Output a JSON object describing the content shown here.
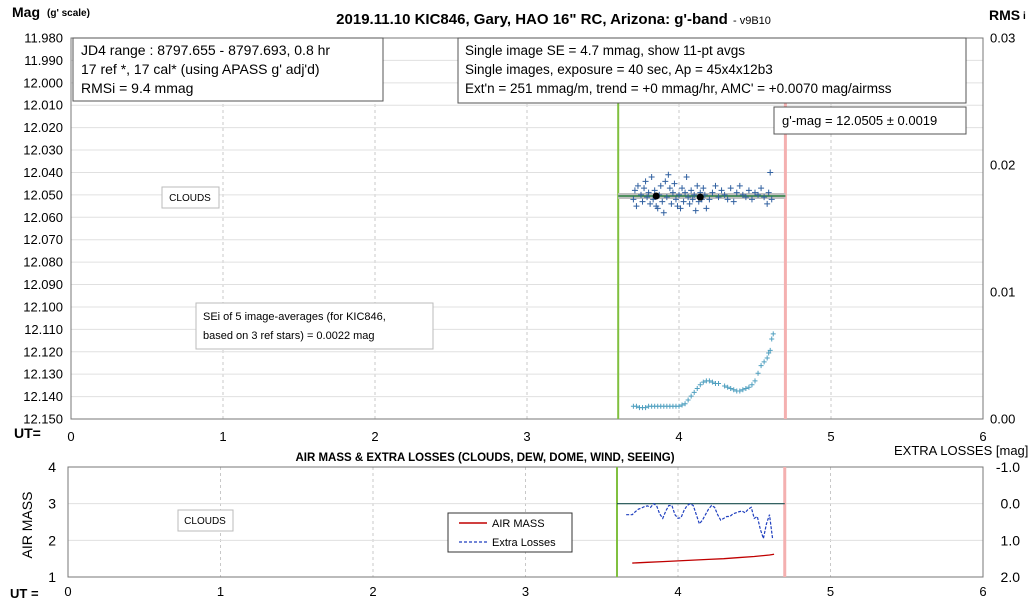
{
  "chart_data": [
    {
      "type": "scatter",
      "title": "2019.11.10 KIC846, Gary, HAO 16\" RC, Arizona: g'-band",
      "version": "- v9B10",
      "ylabel_main": "Mag",
      "ylabel_sub": "(g' scale)",
      "y2label_main": "RMS",
      "y2label_sub": "i",
      "xlabel": "UT=",
      "xlim": [
        0,
        6
      ],
      "x_ticks": [
        "0",
        "1",
        "2",
        "3",
        "4",
        "5",
        "6"
      ],
      "ylim": [
        11.98,
        12.15
      ],
      "y_reversed": true,
      "y_ticks": [
        "11.980",
        "11.990",
        "12.000",
        "12.010",
        "12.020",
        "12.030",
        "12.040",
        "12.050",
        "12.060",
        "12.070",
        "12.080",
        "12.090",
        "12.100",
        "12.110",
        "12.120",
        "12.130",
        "12.140",
        "12.150"
      ],
      "y2lim": [
        0,
        0.03
      ],
      "y2_ticks": [
        "0.03",
        "0.02",
        "0.01",
        "0.00"
      ],
      "grid": true,
      "start_marker_x": 3.6,
      "end_marker_x": 4.7,
      "info_box_1": [
        "JD4 range : 8797.655 - 8797.693,  0.8  hr",
        "17 ref *, 17 cal* (using APASS g' adj'd)",
        "RMSi = 9.4 mmag"
      ],
      "info_box_2": [
        "Single image SE = 4.7 mmag, show  11-pt avgs",
        "Single images, exposure = 40 sec, Ap = 45x4x12b3",
        "Ext'n = 251 mmag/m, trend =  +0 mmag/hr, AMC' = +0.0070 mag/airmss"
      ],
      "gmag_box": "g'-mag = 12.0505 ± 0.0019",
      "clouds_label": "CLOUDS",
      "sei_box": [
        "SEi of 5 image-averages (for KIC846,",
        "based on 3 ref stars) = 0.0022 mag"
      ],
      "fit_line": {
        "x": [
          3.6,
          4.7
        ],
        "y": 12.0505
      },
      "averages": {
        "x": [
          3.85,
          4.14
        ],
        "y": [
          12.0505,
          12.051
        ]
      },
      "individual": {
        "x": [
          3.7,
          3.71,
          3.72,
          3.73,
          3.75,
          3.76,
          3.77,
          3.78,
          3.79,
          3.8,
          3.81,
          3.82,
          3.83,
          3.84,
          3.85,
          3.86,
          3.87,
          3.88,
          3.89,
          3.9,
          3.91,
          3.92,
          3.93,
          3.94,
          3.95,
          3.96,
          3.97,
          3.98,
          3.99,
          4.0,
          4.01,
          4.02,
          4.03,
          4.04,
          4.05,
          4.06,
          4.07,
          4.08,
          4.09,
          4.1,
          4.11,
          4.12,
          4.13,
          4.14,
          4.15,
          4.16,
          4.17,
          4.18,
          4.2,
          4.22,
          4.24,
          4.26,
          4.28,
          4.3,
          4.32,
          4.34,
          4.36,
          4.38,
          4.4,
          4.42,
          4.44,
          4.46,
          4.48,
          4.5,
          4.52,
          4.54,
          4.56,
          4.58,
          4.59,
          4.6,
          4.61
        ],
        "y": [
          12.052,
          12.048,
          12.055,
          12.046,
          12.05,
          12.053,
          12.047,
          12.044,
          12.051,
          12.049,
          12.054,
          12.042,
          12.052,
          12.048,
          12.055,
          12.056,
          12.05,
          12.046,
          12.053,
          12.058,
          12.044,
          12.051,
          12.041,
          12.047,
          12.054,
          12.049,
          12.045,
          12.052,
          12.055,
          12.05,
          12.056,
          12.047,
          12.053,
          12.049,
          12.042,
          12.051,
          12.054,
          12.048,
          12.052,
          12.05,
          12.057,
          12.046,
          12.053,
          12.049,
          12.052,
          12.047,
          12.05,
          12.056,
          12.052,
          12.049,
          12.046,
          12.051,
          12.048,
          12.05,
          12.052,
          12.047,
          12.053,
          12.049,
          12.046,
          12.05,
          12.051,
          12.048,
          12.052,
          12.049,
          12.05,
          12.047,
          12.051,
          12.054,
          12.049,
          12.04,
          12.052
        ]
      },
      "rms_series": {
        "x": [
          3.7,
          3.72,
          3.74,
          3.76,
          3.78,
          3.8,
          3.82,
          3.84,
          3.86,
          3.88,
          3.9,
          3.92,
          3.94,
          3.96,
          3.98,
          4.0,
          4.02,
          4.04,
          4.06,
          4.08,
          4.1,
          4.12,
          4.14,
          4.16,
          4.18,
          4.2,
          4.22,
          4.24,
          4.26,
          4.3,
          4.32,
          4.34,
          4.36,
          4.38,
          4.4,
          4.42,
          4.44,
          4.46,
          4.48,
          4.5,
          4.52,
          4.54,
          4.56,
          4.58,
          4.59,
          4.6,
          4.61,
          4.62
        ],
        "y": [
          0.001,
          0.001,
          0.0009,
          0.0009,
          0.0009,
          0.001,
          0.001,
          0.001,
          0.001,
          0.001,
          0.001,
          0.001,
          0.001,
          0.001,
          0.001,
          0.001,
          0.0011,
          0.0012,
          0.0015,
          0.0018,
          0.0021,
          0.0024,
          0.0027,
          0.0029,
          0.003,
          0.003,
          0.0029,
          0.0028,
          0.0028,
          0.0026,
          0.0025,
          0.0024,
          0.0023,
          0.0022,
          0.0022,
          0.0023,
          0.0024,
          0.0025,
          0.0027,
          0.003,
          0.0036,
          0.0042,
          0.0045,
          0.0048,
          0.0052,
          0.0054,
          0.0063,
          0.0067
        ]
      }
    },
    {
      "type": "line",
      "title": "AIR MASS & EXTRA LOSSES (CLOUDS, DEW, DOME, WIND, SEEING)",
      "ylabel": "AIR MASS",
      "y2label": "EXTRA LOSSES [mag]",
      "xlabel": "UT =",
      "xlim": [
        0,
        6
      ],
      "x_ticks": [
        "0",
        "1",
        "2",
        "3",
        "4",
        "5",
        "6"
      ],
      "ylim": [
        1,
        4
      ],
      "y_ticks": [
        "4",
        "3",
        "2",
        "1"
      ],
      "y2lim": [
        -1.0,
        2.0
      ],
      "y2_ticks": [
        "-1.0",
        "0.0",
        "1.0",
        "2.0"
      ],
      "grid": true,
      "start_marker_x": 3.6,
      "end_marker_x": 4.7,
      "clouds_label": "CLOUDS",
      "legend_position": "center",
      "series": [
        {
          "name": "AIR MASS",
          "color": "#c00000",
          "x": [
            3.7,
            3.8,
            3.9,
            4.0,
            4.1,
            4.2,
            4.3,
            4.4,
            4.5,
            4.6,
            4.63
          ],
          "y": [
            1.38,
            1.4,
            1.42,
            1.44,
            1.46,
            1.48,
            1.5,
            1.53,
            1.56,
            1.6,
            1.62
          ]
        },
        {
          "name": "Extra Losses",
          "color": "#1f3fbf",
          "x": [
            3.66,
            3.7,
            3.72,
            3.74,
            3.76,
            3.78,
            3.8,
            3.82,
            3.84,
            3.86,
            3.88,
            3.9,
            3.92,
            3.94,
            3.96,
            3.98,
            4.0,
            4.02,
            4.04,
            4.06,
            4.08,
            4.1,
            4.12,
            4.14,
            4.16,
            4.18,
            4.2,
            4.22,
            4.24,
            4.26,
            4.28,
            4.3,
            4.32,
            4.34,
            4.36,
            4.38,
            4.4,
            4.42,
            4.44,
            4.46,
            4.48,
            4.5,
            4.52,
            4.54,
            4.56,
            4.58,
            4.6,
            4.62
          ],
          "y": [
            0.3,
            0.3,
            0.22,
            0.15,
            0.12,
            0.08,
            0.06,
            0.1,
            0.0,
            0.06,
            0.28,
            0.4,
            0.2,
            0.05,
            0.05,
            0.3,
            0.4,
            0.38,
            0.18,
            0.05,
            0.0,
            0.05,
            0.3,
            0.55,
            0.45,
            0.3,
            0.15,
            0.05,
            0.1,
            0.3,
            0.45,
            0.4,
            0.35,
            0.35,
            0.28,
            0.25,
            0.22,
            0.2,
            0.25,
            0.15,
            0.1,
            0.4,
            0.35,
            0.7,
            0.95,
            0.55,
            0.3,
            0.95
          ]
        }
      ],
      "flat_line": {
        "x": [
          3.6,
          4.7
        ],
        "y2": 0.0,
        "color": "#1a5050"
      }
    }
  ],
  "colors": {
    "start_marker": "#80c040",
    "end_marker": "#f4b0b0",
    "plus_marker": "#3060a0",
    "rms_marker": "#50a0c0",
    "fit_line": "#2a8040",
    "fit_band": "#c0c0c0",
    "grid": "#c8c8c8"
  }
}
